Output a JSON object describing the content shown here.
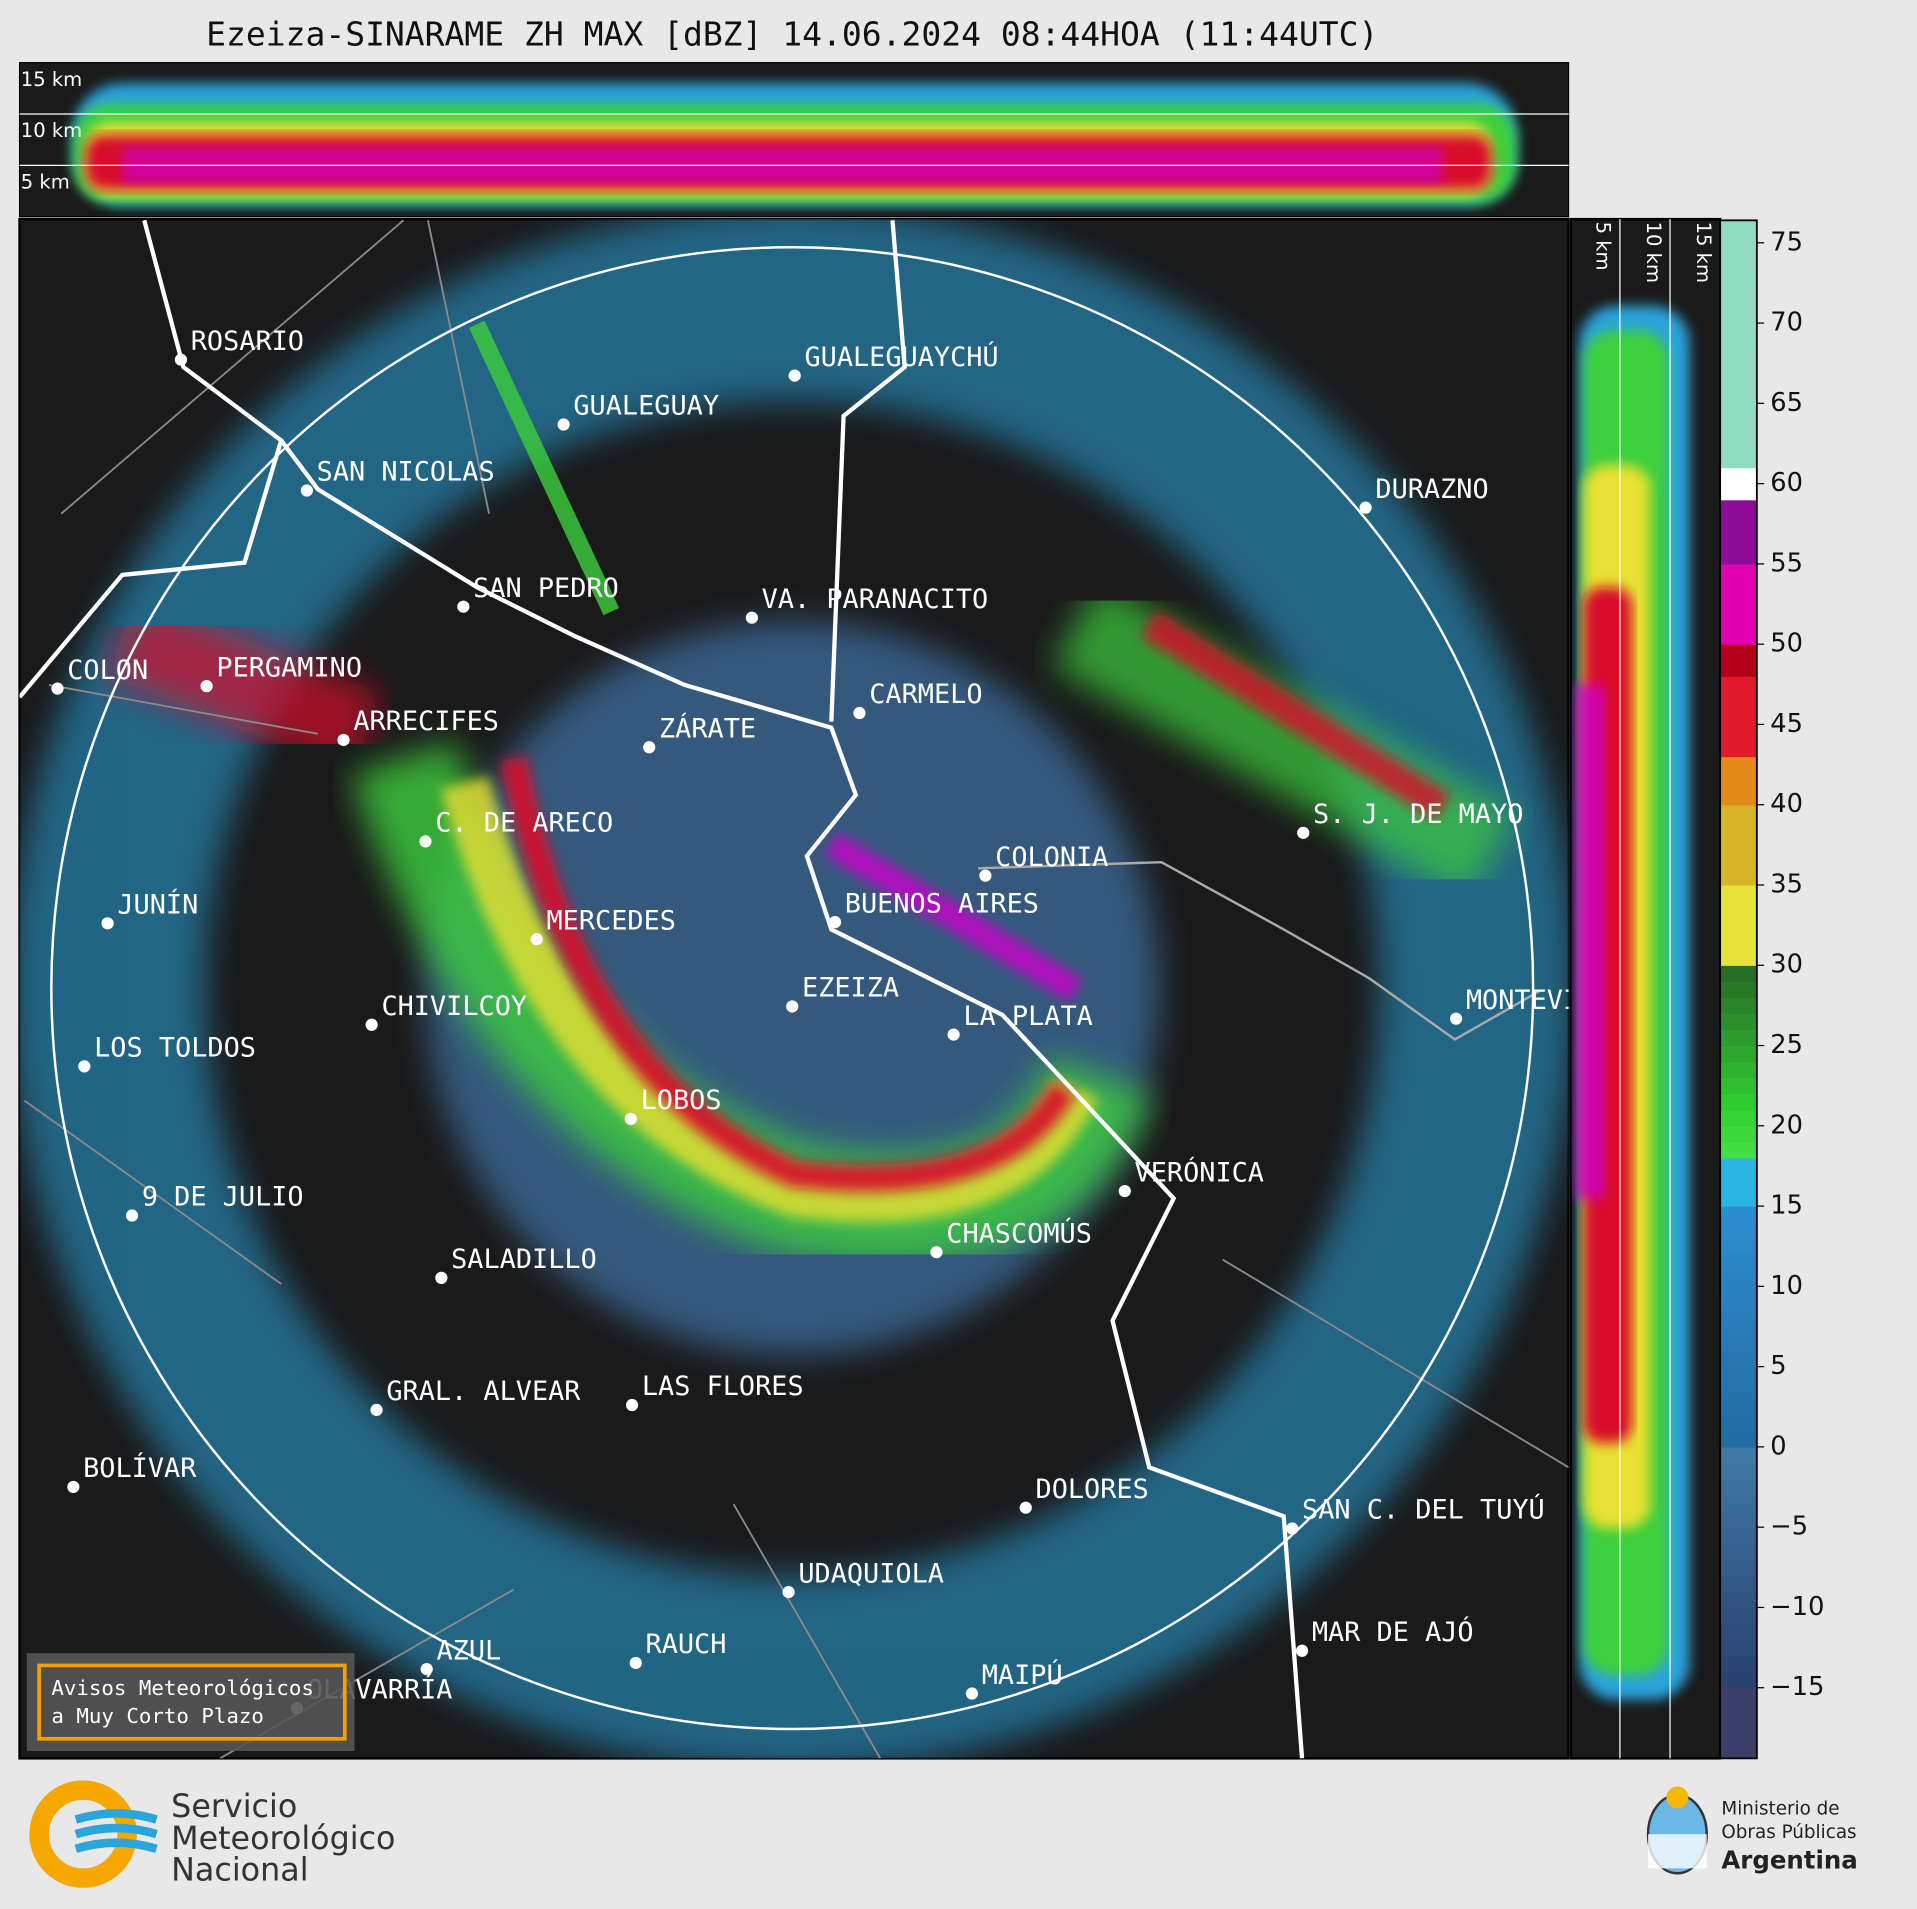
{
  "title": "Ezeiza-SINARAME ZH MAX [dBZ] 14.06.2024 08:44HOA (11:44UTC)",
  "height_labels": [
    "15 km",
    "10 km",
    "5 km"
  ],
  "cities": [
    "ROSARIO",
    "GUALEGUAYCHÚ",
    "GUALEGUAY",
    "SAN NICOLAS",
    "DURAZNO",
    "SAN PEDRO",
    "VA. PARANACITO",
    "COLON",
    "PERGAMINO",
    "CARMELO",
    "ARRECIFES",
    "ZÁRATE",
    "S. J. DE MAYO",
    "C. DE ARECO",
    "COLONIA",
    "BUENOS AIRES",
    "JUNÍN",
    "MERCEDES",
    "EZEIZA",
    "MONTEVIDEO",
    "LA PLATA",
    "CHIVILCOY",
    "LOS TOLDOS",
    "LOBOS",
    "VERÓNICA",
    "9 DE JULIO",
    "CHASCOMÚS",
    "SALADILLO",
    "GRAL. ALVEAR",
    "LAS FLORES",
    "BOLÍVAR",
    "DOLORES",
    "SAN C. DEL TUYÚ",
    "UDAQUIOLA",
    "MAR DE AJÓ",
    "AZUL",
    "RAUCH",
    "OLAVARRÍA",
    "MAIPÚ"
  ],
  "colorbar": {
    "range": [
      -19.4,
      76.4
    ],
    "ticks": [
      75,
      70,
      65,
      60,
      55,
      50,
      45,
      40,
      35,
      30,
      25,
      20,
      15,
      10,
      5,
      0,
      {
        "value": -5,
        "label": "−5"
      },
      {
        "value": -10,
        "label": "−10"
      },
      {
        "value": -15,
        "label": "−15"
      }
    ]
  },
  "notice": [
    "Avisos Meteorológicos",
    "a Muy Corto Plazo"
  ],
  "logo_left": [
    "Servicio",
    "Meteorológico",
    "Nacional"
  ],
  "logo_right": [
    "Ministerio de",
    "Obras Públicas",
    "Argentina"
  ]
}
